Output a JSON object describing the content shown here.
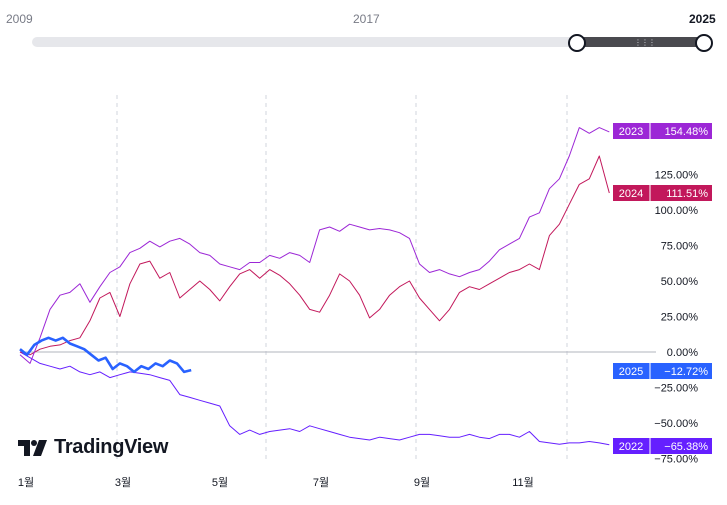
{
  "range_slider": {
    "start_year": "2009",
    "mid_year": "2017",
    "end_year": "2025"
  },
  "logo": {
    "text": "TradingView"
  },
  "chart_data": {
    "type": "line",
    "x_ticks": [
      "1월",
      "3월",
      "5월",
      "7월",
      "9월",
      "11월"
    ],
    "y_ticks": [
      "125.00%",
      "100.00%",
      "75.00%",
      "50.00%",
      "25.00%",
      "0.00%",
      "−25.00%",
      "−50.00%",
      "−75.00%"
    ],
    "y_tick_values": [
      125,
      100,
      75,
      50,
      25,
      0,
      -25,
      -50,
      -75
    ],
    "ylim": [
      -77,
      167
    ],
    "zero_line": true,
    "grid": "vertical-dashed",
    "series": [
      {
        "name": "2023",
        "color": "#9c27d6",
        "final_label": "154.48%",
        "points": [
          [
            1,
            -2
          ],
          [
            8,
            -8
          ],
          [
            15,
            10
          ],
          [
            22,
            30
          ],
          [
            29,
            40
          ],
          [
            36,
            42
          ],
          [
            43,
            48
          ],
          [
            50,
            35
          ],
          [
            57,
            46
          ],
          [
            64,
            56
          ],
          [
            71,
            60
          ],
          [
            78,
            70
          ],
          [
            85,
            73
          ],
          [
            92,
            78
          ],
          [
            99,
            74
          ],
          [
            106,
            78
          ],
          [
            113,
            80
          ],
          [
            120,
            76
          ],
          [
            127,
            70
          ],
          [
            134,
            68
          ],
          [
            141,
            62
          ],
          [
            148,
            60
          ],
          [
            155,
            58
          ],
          [
            162,
            63
          ],
          [
            169,
            63
          ],
          [
            176,
            68
          ],
          [
            183,
            66
          ],
          [
            190,
            70
          ],
          [
            197,
            68
          ],
          [
            204,
            63
          ],
          [
            211,
            86
          ],
          [
            218,
            88
          ],
          [
            225,
            85
          ],
          [
            232,
            90
          ],
          [
            239,
            88
          ],
          [
            246,
            86
          ],
          [
            253,
            87
          ],
          [
            260,
            86
          ],
          [
            267,
            84
          ],
          [
            274,
            80
          ],
          [
            281,
            62
          ],
          [
            288,
            56
          ],
          [
            295,
            58
          ],
          [
            302,
            55
          ],
          [
            309,
            53
          ],
          [
            316,
            56
          ],
          [
            323,
            58
          ],
          [
            330,
            64
          ],
          [
            337,
            72
          ],
          [
            344,
            76
          ],
          [
            351,
            80
          ],
          [
            358,
            95
          ],
          [
            365,
            98
          ],
          [
            372,
            115
          ],
          [
            379,
            122
          ],
          [
            386,
            138
          ],
          [
            393,
            158
          ],
          [
            400,
            154
          ],
          [
            407,
            158
          ],
          [
            414,
            155
          ]
        ]
      },
      {
        "name": "2024",
        "color": "#c2185b",
        "final_label": "111.51%",
        "points": [
          [
            1,
            0
          ],
          [
            8,
            -2
          ],
          [
            15,
            2
          ],
          [
            22,
            4
          ],
          [
            29,
            5
          ],
          [
            36,
            8
          ],
          [
            43,
            10
          ],
          [
            50,
            22
          ],
          [
            57,
            38
          ],
          [
            64,
            42
          ],
          [
            71,
            25
          ],
          [
            78,
            48
          ],
          [
            85,
            62
          ],
          [
            92,
            64
          ],
          [
            99,
            52
          ],
          [
            106,
            56
          ],
          [
            113,
            38
          ],
          [
            120,
            44
          ],
          [
            127,
            50
          ],
          [
            134,
            44
          ],
          [
            141,
            36
          ],
          [
            148,
            46
          ],
          [
            155,
            55
          ],
          [
            162,
            58
          ],
          [
            169,
            52
          ],
          [
            176,
            58
          ],
          [
            183,
            54
          ],
          [
            190,
            48
          ],
          [
            197,
            40
          ],
          [
            204,
            30
          ],
          [
            211,
            28
          ],
          [
            218,
            40
          ],
          [
            225,
            55
          ],
          [
            232,
            50
          ],
          [
            239,
            40
          ],
          [
            246,
            24
          ],
          [
            253,
            30
          ],
          [
            260,
            40
          ],
          [
            267,
            46
          ],
          [
            274,
            50
          ],
          [
            281,
            38
          ],
          [
            288,
            30
          ],
          [
            295,
            22
          ],
          [
            302,
            30
          ],
          [
            309,
            42
          ],
          [
            316,
            46
          ],
          [
            323,
            44
          ],
          [
            330,
            48
          ],
          [
            337,
            52
          ],
          [
            344,
            56
          ],
          [
            351,
            58
          ],
          [
            358,
            62
          ],
          [
            365,
            58
          ],
          [
            372,
            82
          ],
          [
            379,
            90
          ],
          [
            386,
            104
          ],
          [
            393,
            118
          ],
          [
            400,
            122
          ],
          [
            407,
            138
          ],
          [
            414,
            112
          ]
        ]
      },
      {
        "name": "2022",
        "color": "#651fff",
        "final_label": "−65.38%",
        "points": [
          [
            1,
            0
          ],
          [
            8,
            -4
          ],
          [
            15,
            -8
          ],
          [
            22,
            -10
          ],
          [
            29,
            -12
          ],
          [
            36,
            -10
          ],
          [
            43,
            -14
          ],
          [
            50,
            -16
          ],
          [
            57,
            -14
          ],
          [
            64,
            -18
          ],
          [
            71,
            -16
          ],
          [
            78,
            -14
          ],
          [
            85,
            -15
          ],
          [
            92,
            -16
          ],
          [
            99,
            -18
          ],
          [
            106,
            -20
          ],
          [
            113,
            -30
          ],
          [
            120,
            -32
          ],
          [
            127,
            -34
          ],
          [
            134,
            -36
          ],
          [
            141,
            -38
          ],
          [
            148,
            -52
          ],
          [
            155,
            -58
          ],
          [
            162,
            -55
          ],
          [
            169,
            -58
          ],
          [
            176,
            -56
          ],
          [
            183,
            -55
          ],
          [
            190,
            -54
          ],
          [
            197,
            -56
          ],
          [
            204,
            -52
          ],
          [
            211,
            -54
          ],
          [
            218,
            -56
          ],
          [
            225,
            -58
          ],
          [
            232,
            -60
          ],
          [
            239,
            -61
          ],
          [
            246,
            -62
          ],
          [
            253,
            -60
          ],
          [
            260,
            -61
          ],
          [
            267,
            -62
          ],
          [
            274,
            -60
          ],
          [
            281,
            -58
          ],
          [
            288,
            -58
          ],
          [
            295,
            -59
          ],
          [
            302,
            -60
          ],
          [
            309,
            -60
          ],
          [
            316,
            -58
          ],
          [
            323,
            -60
          ],
          [
            330,
            -61
          ],
          [
            337,
            -58
          ],
          [
            344,
            -58
          ],
          [
            351,
            -60
          ],
          [
            358,
            -56
          ],
          [
            365,
            -63
          ],
          [
            372,
            -64
          ],
          [
            379,
            -65
          ],
          [
            386,
            -64
          ],
          [
            393,
            -64
          ],
          [
            400,
            -63
          ],
          [
            407,
            -64
          ],
          [
            414,
            -65.38
          ]
        ]
      },
      {
        "name": "2025",
        "color": "#2962ff",
        "final_label": "−12.72%",
        "points": [
          [
            1,
            2
          ],
          [
            6,
            -2
          ],
          [
            11,
            5
          ],
          [
            16,
            8
          ],
          [
            21,
            10
          ],
          [
            26,
            8
          ],
          [
            31,
            10
          ],
          [
            36,
            6
          ],
          [
            41,
            4
          ],
          [
            46,
            2
          ],
          [
            51,
            -2
          ],
          [
            56,
            -6
          ],
          [
            61,
            -4
          ],
          [
            66,
            -12
          ],
          [
            71,
            -8
          ],
          [
            76,
            -10
          ],
          [
            81,
            -14
          ],
          [
            86,
            -10
          ],
          [
            91,
            -12
          ],
          [
            96,
            -8
          ],
          [
            101,
            -10
          ],
          [
            106,
            -6
          ],
          [
            111,
            -8
          ],
          [
            116,
            -14
          ],
          [
            121,
            -12.72
          ]
        ]
      }
    ]
  }
}
